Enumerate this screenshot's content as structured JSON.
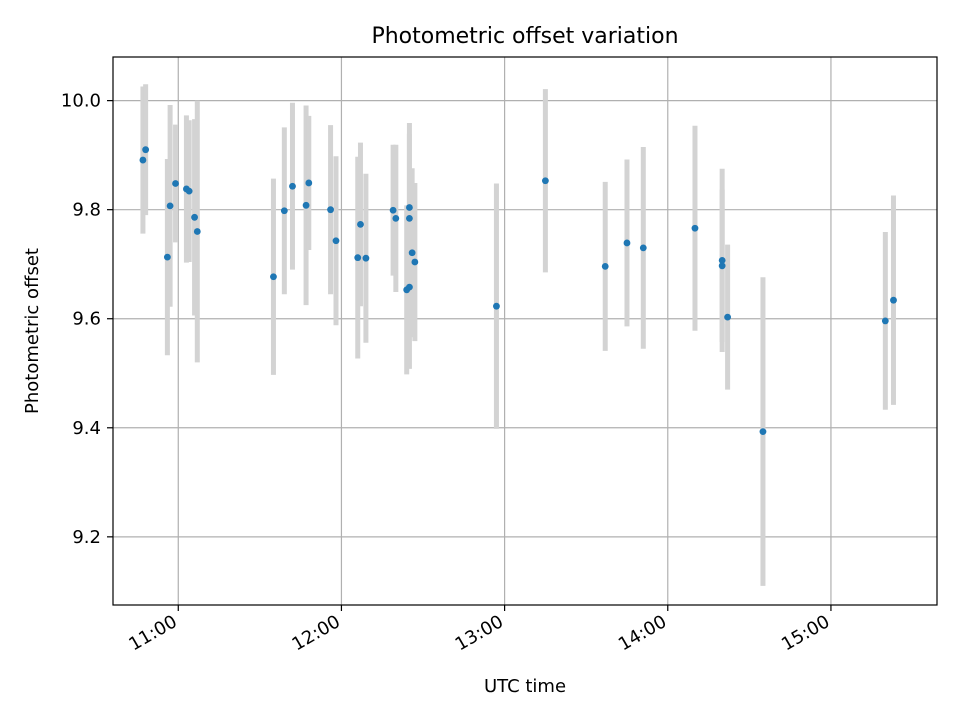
{
  "chart_data": {
    "type": "scatter",
    "title": "Photometric offset variation",
    "xlabel": "UTC time",
    "ylabel": "Photometric offset",
    "x_unit": "UTC time (HH:MM)",
    "xlim": [
      "10:36",
      "15:39"
    ],
    "ylim": [
      9.075,
      10.08
    ],
    "grid": true,
    "x_ticks": [
      "11:00",
      "12:00",
      "13:00",
      "14:00",
      "15:00"
    ],
    "y_ticks": [
      "9.2",
      "9.4",
      "9.6",
      "9.8",
      "10.0"
    ],
    "marker_color": "#1f77b4",
    "errorbar_color": "#d3d3d3",
    "points": [
      {
        "t": "10:47",
        "y": 9.891,
        "err": 0.135
      },
      {
        "t": "10:48",
        "y": 9.91,
        "err": 0.12
      },
      {
        "t": "10:56",
        "y": 9.713,
        "err": 0.18
      },
      {
        "t": "10:57",
        "y": 9.807,
        "err": 0.185
      },
      {
        "t": "10:59",
        "y": 9.848,
        "err": 0.108
      },
      {
        "t": "11:03",
        "y": 9.838,
        "err": 0.135
      },
      {
        "t": "11:04",
        "y": 9.834,
        "err": 0.13
      },
      {
        "t": "11:06",
        "y": 9.786,
        "err": 0.18
      },
      {
        "t": "11:07",
        "y": 9.76,
        "err": 0.24
      },
      {
        "t": "11:35",
        "y": 9.677,
        "err": 0.18
      },
      {
        "t": "11:39",
        "y": 9.798,
        "err": 0.153
      },
      {
        "t": "11:42",
        "y": 9.843,
        "err": 0.153
      },
      {
        "t": "11:47",
        "y": 9.808,
        "err": 0.183
      },
      {
        "t": "11:48",
        "y": 9.849,
        "err": 0.123
      },
      {
        "t": "11:56",
        "y": 9.8,
        "err": 0.155
      },
      {
        "t": "11:58",
        "y": 9.743,
        "err": 0.155
      },
      {
        "t": "12:06",
        "y": 9.712,
        "err": 0.185
      },
      {
        "t": "12:07",
        "y": 9.773,
        "err": 0.15
      },
      {
        "t": "12:09",
        "y": 9.711,
        "err": 0.155
      },
      {
        "t": "12:19",
        "y": 9.799,
        "err": 0.12
      },
      {
        "t": "12:20",
        "y": 9.784,
        "err": 0.135
      },
      {
        "t": "12:24",
        "y": 9.653,
        "err": 0.155
      },
      {
        "t": "12:25",
        "y": 9.658,
        "err": 0.15
      },
      {
        "t": "12:25",
        "y": 9.804,
        "err": 0.155
      },
      {
        "t": "12:25",
        "y": 9.784,
        "err": 0.155
      },
      {
        "t": "12:26",
        "y": 9.721,
        "err": 0.155
      },
      {
        "t": "12:27",
        "y": 9.704,
        "err": 0.145
      },
      {
        "t": "12:57",
        "y": 9.623,
        "err": 0.225
      },
      {
        "t": "13:15",
        "y": 9.853,
        "err": 0.168
      },
      {
        "t": "13:37",
        "y": 9.696,
        "err": 0.155
      },
      {
        "t": "13:45",
        "y": 9.739,
        "err": 0.153
      },
      {
        "t": "13:51",
        "y": 9.73,
        "err": 0.185
      },
      {
        "t": "14:10",
        "y": 9.766,
        "err": 0.188
      },
      {
        "t": "14:20",
        "y": 9.697,
        "err": 0.14
      },
      {
        "t": "14:20",
        "y": 9.707,
        "err": 0.168
      },
      {
        "t": "14:22",
        "y": 9.603,
        "err": 0.133
      },
      {
        "t": "14:35",
        "y": 9.393,
        "err": 0.283
      },
      {
        "t": "15:20",
        "y": 9.596,
        "err": 0.163
      },
      {
        "t": "15:23",
        "y": 9.634,
        "err": 0.192
      }
    ]
  }
}
